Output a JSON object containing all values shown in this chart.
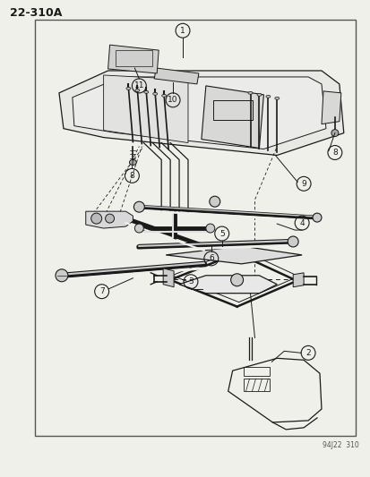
{
  "title_code": "22-310A",
  "footer_code": "94J22  310",
  "bg_color": "#f5f5f0",
  "line_color": "#1a1a1a",
  "border_color": "#333333",
  "border": [
    38,
    45,
    370,
    470
  ],
  "callouts": {
    "1": [
      204,
      498,
      204,
      475
    ],
    "2": [
      338,
      140,
      310,
      130
    ],
    "3": [
      213,
      223,
      230,
      230
    ],
    "4": [
      332,
      286,
      310,
      278
    ],
    "5": [
      247,
      274,
      247,
      263
    ],
    "6": [
      235,
      242,
      235,
      253
    ],
    "7": [
      115,
      208,
      140,
      218
    ],
    "8a": [
      148,
      333,
      158,
      345
    ],
    "8b": [
      373,
      360,
      363,
      368
    ],
    "9": [
      340,
      330,
      310,
      345
    ],
    "10": [
      193,
      420,
      193,
      412
    ],
    "11": [
      155,
      437,
      170,
      428
    ]
  }
}
